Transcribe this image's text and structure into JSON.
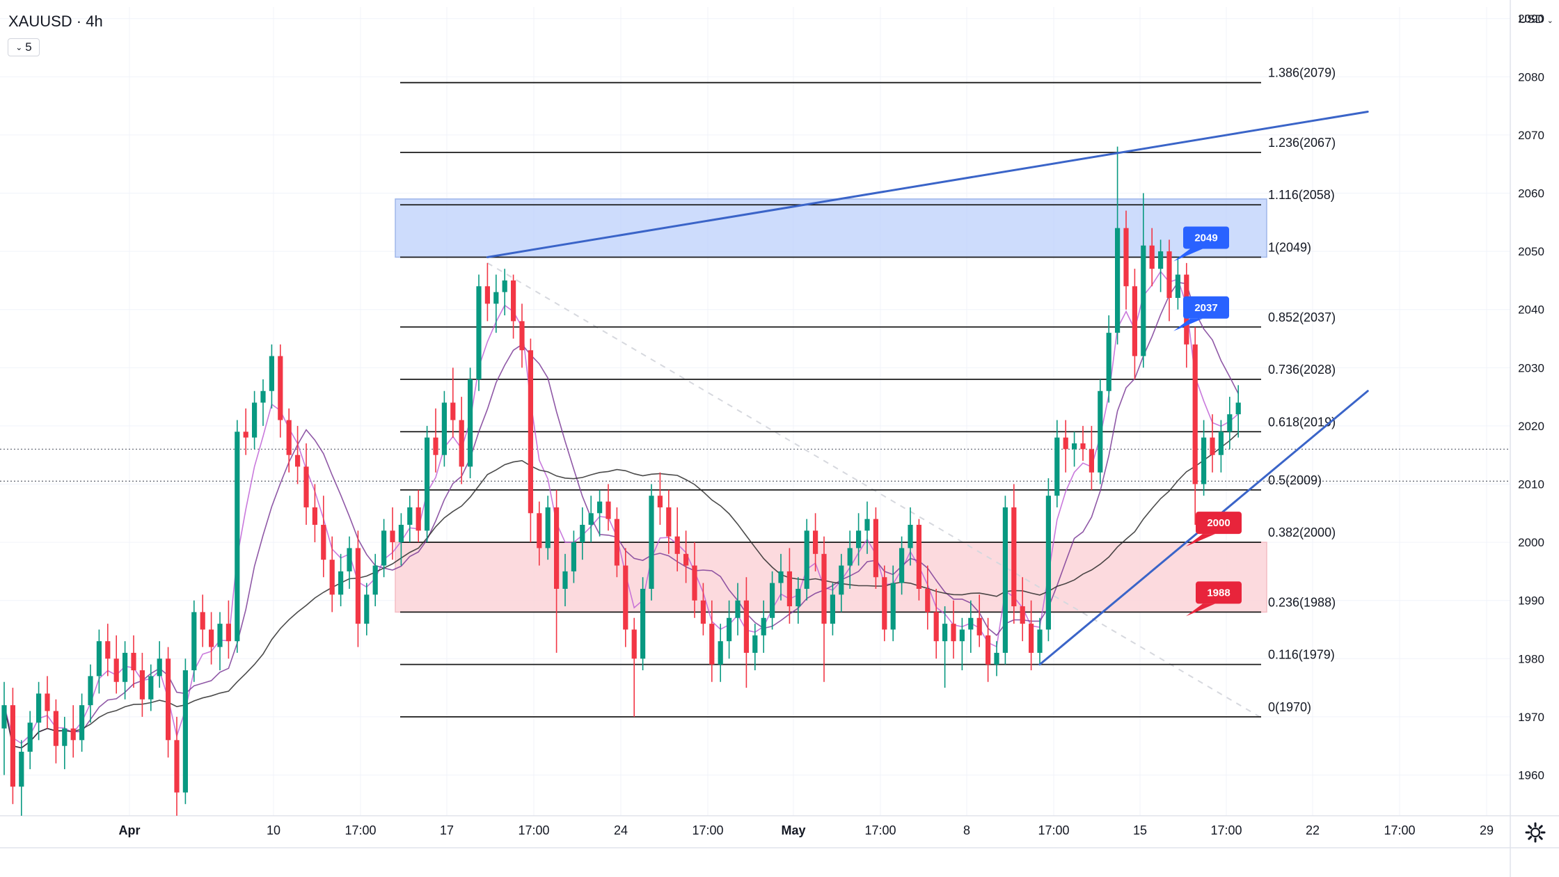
{
  "header": {
    "symbol_title": "XAUUSD · 4h",
    "indicator_count": "5",
    "currency": "USD"
  },
  "colors": {
    "bull": "#089981",
    "bear": "#f23645",
    "trend": "#3a64c8",
    "fib": "#1a1a1a",
    "resistance_zone": "#bcd0fb",
    "support_zone": "#fbd3d8",
    "label_blue": "#2962ff",
    "label_red": "#e8243b",
    "ma_purple": "#9c27b0",
    "ma_dark": "#2a2a2a"
  },
  "icons": {
    "dropdown": "chevron-down-icon",
    "settings": "gear-icon"
  },
  "chart_data": {
    "type": "candlestick",
    "symbol": "XAUUSD",
    "timeframe": "4h",
    "ylim": [
      1953,
      2092
    ],
    "y_ticks": [
      1960,
      1970,
      1980,
      1990,
      2000,
      2010,
      2020,
      2030,
      2040,
      2050,
      2060,
      2070,
      2080,
      2090
    ],
    "x_ticks": [
      "Apr",
      "10",
      "17:00",
      "17",
      "17:00",
      "24",
      "17:00",
      "May",
      "17:00",
      "8",
      "17:00",
      "15",
      "17:00",
      "22",
      "17:00",
      "29"
    ],
    "fib_levels": [
      {
        "label": "1.386(2079)",
        "price": 2079
      },
      {
        "label": "1.236(2067)",
        "price": 2067
      },
      {
        "label": "1.116(2058)",
        "price": 2058
      },
      {
        "label": "1(2049)",
        "price": 2049
      },
      {
        "label": "0.852(2037)",
        "price": 2037
      },
      {
        "label": "0.736(2028)",
        "price": 2028
      },
      {
        "label": "0.618(2019)",
        "price": 2019
      },
      {
        "label": "0.5(2009)",
        "price": 2009
      },
      {
        "label": "0.382(2000)",
        "price": 2000
      },
      {
        "label": "0.236(1988)",
        "price": 1988
      },
      {
        "label": "0.116(1979)",
        "price": 1979
      },
      {
        "label": "0(1970)",
        "price": 1970
      }
    ],
    "zones": [
      {
        "kind": "resistance",
        "from": 2049,
        "to": 2059
      },
      {
        "kind": "support",
        "from": 1988,
        "to": 2000
      }
    ],
    "price_labels": [
      {
        "text": "2049",
        "price": 2049,
        "color": "blue"
      },
      {
        "text": "2037",
        "price": 2037,
        "color": "blue"
      },
      {
        "text": "2000",
        "price": 2000,
        "color": "red"
      },
      {
        "text": "1988",
        "price": 1988,
        "color": "red"
      }
    ],
    "trendlines": [
      {
        "from_bar": 56,
        "from_price": 2049,
        "to_bar": 158,
        "to_price": 2074
      },
      {
        "from_bar": 120,
        "from_price": 1979,
        "to_bar": 158,
        "to_price": 2026
      }
    ],
    "reference_prices": [
      2016,
      2010.5
    ],
    "candles": [
      [
        1968,
        1976,
        1960,
        1972
      ],
      [
        1972,
        1975,
        1955,
        1958
      ],
      [
        1958,
        1966,
        1953,
        1964
      ],
      [
        1964,
        1971,
        1961,
        1969
      ],
      [
        1969,
        1976,
        1966,
        1974
      ],
      [
        1974,
        1977,
        1968,
        1971
      ],
      [
        1971,
        1973,
        1962,
        1965
      ],
      [
        1965,
        1970,
        1961,
        1968
      ],
      [
        1968,
        1972,
        1963,
        1966
      ],
      [
        1966,
        1974,
        1964,
        1972
      ],
      [
        1972,
        1979,
        1969,
        1977
      ],
      [
        1977,
        1985,
        1974,
        1983
      ],
      [
        1983,
        1986,
        1977,
        1980
      ],
      [
        1980,
        1984,
        1974,
        1976
      ],
      [
        1976,
        1983,
        1973,
        1981
      ],
      [
        1981,
        1984,
        1975,
        1978
      ],
      [
        1978,
        1981,
        1970,
        1973
      ],
      [
        1973,
        1979,
        1971,
        1977
      ],
      [
        1977,
        1983,
        1975,
        1980
      ],
      [
        1980,
        1982,
        1963,
        1966
      ],
      [
        1966,
        1970,
        1953,
        1957
      ],
      [
        1957,
        1980,
        1955,
        1978
      ],
      [
        1978,
        1990,
        1976,
        1988
      ],
      [
        1988,
        1991,
        1982,
        1985
      ],
      [
        1985,
        1988,
        1979,
        1982
      ],
      [
        1982,
        1988,
        1978,
        1986
      ],
      [
        1986,
        1990,
        1980,
        1983
      ],
      [
        1983,
        2021,
        1981,
        2019
      ],
      [
        2019,
        2023,
        2015,
        2018
      ],
      [
        2018,
        2026,
        2016,
        2024
      ],
      [
        2024,
        2028,
        2020,
        2026
      ],
      [
        2026,
        2034,
        2023,
        2032
      ],
      [
        2032,
        2034,
        2018,
        2021
      ],
      [
        2021,
        2023,
        2012,
        2015
      ],
      [
        2015,
        2020,
        2010,
        2013
      ],
      [
        2013,
        2017,
        2003,
        2006
      ],
      [
        2006,
        2010,
        2000,
        2003
      ],
      [
        2003,
        2008,
        1994,
        1997
      ],
      [
        1997,
        2001,
        1988,
        1991
      ],
      [
        1991,
        1998,
        1989,
        1995
      ],
      [
        1995,
        2001,
        1992,
        1999
      ],
      [
        1999,
        2002,
        1982,
        1986
      ],
      [
        1986,
        1993,
        1984,
        1991
      ],
      [
        1991,
        1998,
        1989,
        1996
      ],
      [
        1996,
        2004,
        1994,
        2002
      ],
      [
        2002,
        2006,
        1997,
        2000
      ],
      [
        2000,
        2005,
        1996,
        2003
      ],
      [
        2003,
        2008,
        2000,
        2006
      ],
      [
        2006,
        2009,
        2000,
        2002
      ],
      [
        2002,
        2020,
        2000,
        2018
      ],
      [
        2018,
        2023,
        2012,
        2015
      ],
      [
        2015,
        2026,
        2013,
        2024
      ],
      [
        2024,
        2030,
        2018,
        2021
      ],
      [
        2021,
        2025,
        2010,
        2013
      ],
      [
        2013,
        2030,
        2011,
        2028
      ],
      [
        2028,
        2046,
        2026,
        2044
      ],
      [
        2044,
        2048,
        2038,
        2041
      ],
      [
        2041,
        2046,
        2036,
        2043
      ],
      [
        2043,
        2047,
        2039,
        2045
      ],
      [
        2045,
        2046,
        2035,
        2038
      ],
      [
        2038,
        2041,
        2030,
        2033
      ],
      [
        2033,
        2035,
        2000,
        2005
      ],
      [
        2005,
        2007,
        1996,
        1999
      ],
      [
        1999,
        2008,
        1997,
        2006
      ],
      [
        2006,
        2009,
        1981,
        1992
      ],
      [
        1992,
        1998,
        1989,
        1995
      ],
      [
        1995,
        2002,
        1993,
        2000
      ],
      [
        2000,
        2006,
        1997,
        2003
      ],
      [
        2003,
        2008,
        2000,
        2005
      ],
      [
        2005,
        2009,
        2001,
        2007
      ],
      [
        2007,
        2010,
        2002,
        2004
      ],
      [
        2004,
        2006,
        1994,
        1996
      ],
      [
        1996,
        1999,
        1982,
        1985
      ],
      [
        1985,
        1987,
        1970,
        1980
      ],
      [
        1980,
        1994,
        1978,
        1992
      ],
      [
        1992,
        2010,
        1990,
        2008
      ],
      [
        2008,
        2012,
        2003,
        2006
      ],
      [
        2006,
        2009,
        1998,
        2001
      ],
      [
        2001,
        2006,
        1995,
        1998
      ],
      [
        1998,
        2002,
        1993,
        1996
      ],
      [
        1996,
        2000,
        1987,
        1990
      ],
      [
        1990,
        1993,
        1984,
        1986
      ],
      [
        1986,
        1990,
        1976,
        1979
      ],
      [
        1979,
        1986,
        1976,
        1983
      ],
      [
        1983,
        1990,
        1980,
        1987
      ],
      [
        1987,
        1993,
        1984,
        1990
      ],
      [
        1990,
        1994,
        1975,
        1981
      ],
      [
        1981,
        1986,
        1978,
        1984
      ],
      [
        1984,
        1990,
        1981,
        1987
      ],
      [
        1987,
        1995,
        1985,
        1993
      ],
      [
        1993,
        1998,
        1990,
        1995
      ],
      [
        1995,
        1999,
        1986,
        1989
      ],
      [
        1989,
        1994,
        1986,
        1992
      ],
      [
        1992,
        2004,
        1990,
        2002
      ],
      [
        2002,
        2005,
        1995,
        1998
      ],
      [
        1998,
        2001,
        1976,
        1986
      ],
      [
        1986,
        1993,
        1984,
        1991
      ],
      [
        1991,
        1998,
        1988,
        1996
      ],
      [
        1996,
        2002,
        1992,
        1999
      ],
      [
        1999,
        2005,
        1996,
        2002
      ],
      [
        2002,
        2007,
        1998,
        2004
      ],
      [
        2004,
        2006,
        1992,
        1994
      ],
      [
        1994,
        1996,
        1983,
        1985
      ],
      [
        1985,
        1996,
        1983,
        1993
      ],
      [
        1993,
        2001,
        1991,
        1999
      ],
      [
        1999,
        2006,
        1996,
        2003
      ],
      [
        2003,
        2004,
        1990,
        1992
      ],
      [
        1992,
        1996,
        1985,
        1988
      ],
      [
        1988,
        1992,
        1980,
        1983
      ],
      [
        1983,
        1989,
        1975,
        1986
      ],
      [
        1986,
        1990,
        1980,
        1983
      ],
      [
        1983,
        1987,
        1978,
        1985
      ],
      [
        1985,
        1990,
        1981,
        1987
      ],
      [
        1987,
        1991,
        1982,
        1984
      ],
      [
        1984,
        1987,
        1976,
        1979
      ],
      [
        1979,
        1983,
        1977,
        1981
      ],
      [
        1981,
        2008,
        1979,
        2006
      ],
      [
        2006,
        2010,
        1986,
        1989
      ],
      [
        1989,
        1994,
        1983,
        1986
      ],
      [
        1986,
        1990,
        1978,
        1981
      ],
      [
        1981,
        1987,
        1979,
        1985
      ],
      [
        1985,
        2011,
        1983,
        2008
      ],
      [
        2008,
        2021,
        2006,
        2018
      ],
      [
        2018,
        2021,
        2012,
        2016
      ],
      [
        2016,
        2019,
        2013,
        2017
      ],
      [
        2017,
        2020,
        2014,
        2016
      ],
      [
        2016,
        2020,
        2009,
        2012
      ],
      [
        2012,
        2028,
        2010,
        2026
      ],
      [
        2026,
        2039,
        2024,
        2036
      ],
      [
        2036,
        2068,
        2034,
        2054
      ],
      [
        2054,
        2057,
        2040,
        2044
      ],
      [
        2044,
        2047,
        2028,
        2032
      ],
      [
        2032,
        2060,
        2030,
        2051
      ],
      [
        2051,
        2054,
        2044,
        2047
      ],
      [
        2047,
        2052,
        2043,
        2050
      ],
      [
        2050,
        2052,
        2038,
        2042
      ],
      [
        2042,
        2049,
        2040,
        2046
      ],
      [
        2046,
        2048,
        2030,
        2034
      ],
      [
        2034,
        2037,
        2003,
        2010
      ],
      [
        2010,
        2021,
        2008,
        2018
      ],
      [
        2018,
        2022,
        2012,
        2015
      ],
      [
        2015,
        2021,
        2012,
        2019
      ],
      [
        2019,
        2025,
        2016,
        2022
      ],
      [
        2022,
        2027,
        2018,
        2024
      ]
    ]
  }
}
